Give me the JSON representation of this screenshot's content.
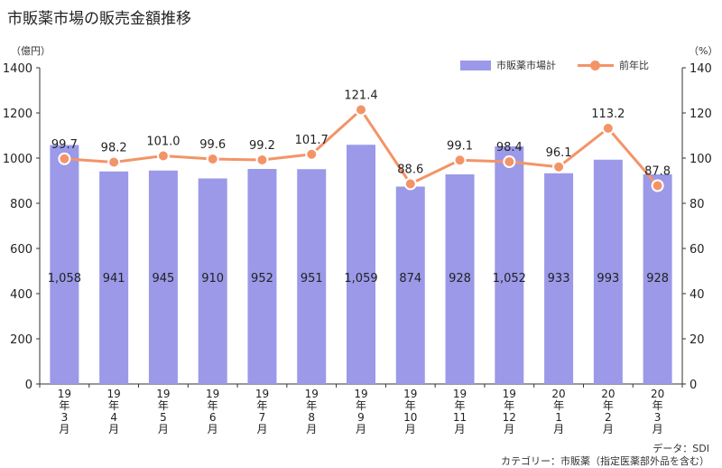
{
  "title": "市販薬市場の販売金額推移",
  "left_unit": "（億円）",
  "right_unit": "（%）",
  "legend": {
    "bar": "市販薬市場計",
    "line": "前年比"
  },
  "notes": {
    "data_source": "データ：SDI",
    "category": "カテゴリー：市販薬（指定医薬部外品を含む）"
  },
  "colors": {
    "bar": "#9b99e8",
    "line": "#f39468",
    "marker_stroke": "#ffffff",
    "axis": "#333333"
  },
  "chart_data": {
    "type": "bar",
    "title": "市販薬市場の販売金額推移",
    "categories": [
      "19年3月",
      "19年4月",
      "19年5月",
      "19年6月",
      "19年7月",
      "19年8月",
      "19年9月",
      "19年10月",
      "19年11月",
      "19年12月",
      "20年1月",
      "20年2月",
      "20年3月"
    ],
    "category_ticks": [
      [
        "19",
        "年",
        "3",
        "月"
      ],
      [
        "19",
        "年",
        "4",
        "月"
      ],
      [
        "19",
        "年",
        "5",
        "月"
      ],
      [
        "19",
        "年",
        "6",
        "月"
      ],
      [
        "19",
        "年",
        "7",
        "月"
      ],
      [
        "19",
        "年",
        "8",
        "月"
      ],
      [
        "19",
        "年",
        "9",
        "月"
      ],
      [
        "19",
        "年",
        "10",
        "月"
      ],
      [
        "19",
        "年",
        "11",
        "月"
      ],
      [
        "19",
        "年",
        "12",
        "月"
      ],
      [
        "20",
        "年",
        "1",
        "月"
      ],
      [
        "20",
        "年",
        "2",
        "月"
      ],
      [
        "20",
        "年",
        "3",
        "月"
      ]
    ],
    "series": [
      {
        "name": "市販薬市場計",
        "axis": "left",
        "kind": "bar",
        "values": [
          1058,
          941,
          945,
          910,
          952,
          951,
          1059,
          874,
          928,
          1052,
          933,
          993,
          928
        ],
        "labels": [
          "1,058",
          "941",
          "945",
          "910",
          "952",
          "951",
          "1,059",
          "874",
          "928",
          "1,052",
          "933",
          "993",
          "928"
        ]
      },
      {
        "name": "前年比",
        "axis": "right",
        "kind": "line",
        "values": [
          99.7,
          98.2,
          101.0,
          99.6,
          99.2,
          101.7,
          121.4,
          88.6,
          99.1,
          98.4,
          96.1,
          113.2,
          87.8
        ],
        "labels": [
          "99.7",
          "98.2",
          "101.0",
          "99.6",
          "99.2",
          "101.7",
          "121.4",
          "88.6",
          "99.1",
          "98.4",
          "96.1",
          "113.2",
          "87.8"
        ]
      }
    ],
    "ylabel": "億円",
    "y2label": "%",
    "ylim": [
      0,
      1400
    ],
    "y2lim": [
      0,
      140
    ],
    "yticks": [
      0,
      200,
      400,
      600,
      800,
      1000,
      1200,
      1400
    ],
    "y2ticks": [
      0,
      20,
      40,
      60,
      80,
      100,
      120,
      140
    ],
    "grid": false,
    "legend_position": "top-right"
  }
}
